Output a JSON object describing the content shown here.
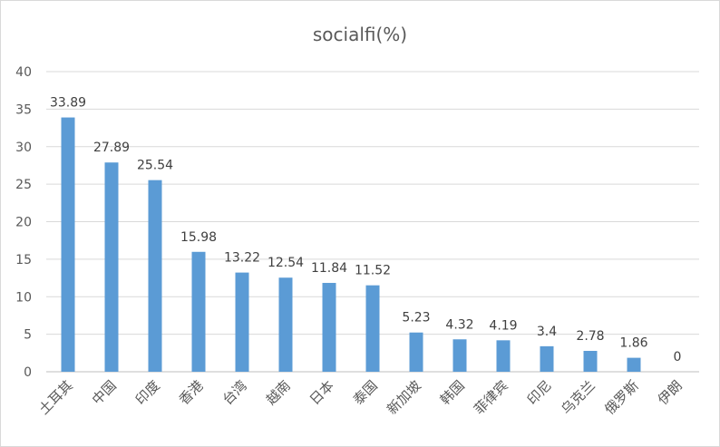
{
  "chart_data": {
    "type": "bar",
    "title": "socialfi(%)",
    "categories": [
      "土耳其",
      "中国",
      "印度",
      "香港",
      "台湾",
      "越南",
      "日本",
      "泰国",
      "新加坡",
      "韩国",
      "菲律宾",
      "印尼",
      "乌克兰",
      "俄罗斯",
      "伊朗"
    ],
    "values": [
      33.89,
      27.89,
      25.54,
      15.98,
      13.22,
      12.54,
      11.84,
      11.52,
      5.23,
      4.32,
      4.19,
      3.4,
      2.78,
      1.86,
      0
    ],
    "value_labels": [
      "33.89",
      "27.89",
      "25.54",
      "15.98",
      "13.22",
      "12.54",
      "11.84",
      "11.52",
      "5.23",
      "4.32",
      "4.19",
      "3.4",
      "2.78",
      "1.86",
      "0"
    ],
    "y_ticks": [
      "0",
      "5",
      "10",
      "15",
      "20",
      "25",
      "30",
      "35",
      "40"
    ],
    "ylim": [
      0,
      40
    ],
    "grid": true,
    "bar_color": "#5b9bd5",
    "grid_color": "#d9d9d9",
    "axis_color": "#bfbfbf"
  }
}
